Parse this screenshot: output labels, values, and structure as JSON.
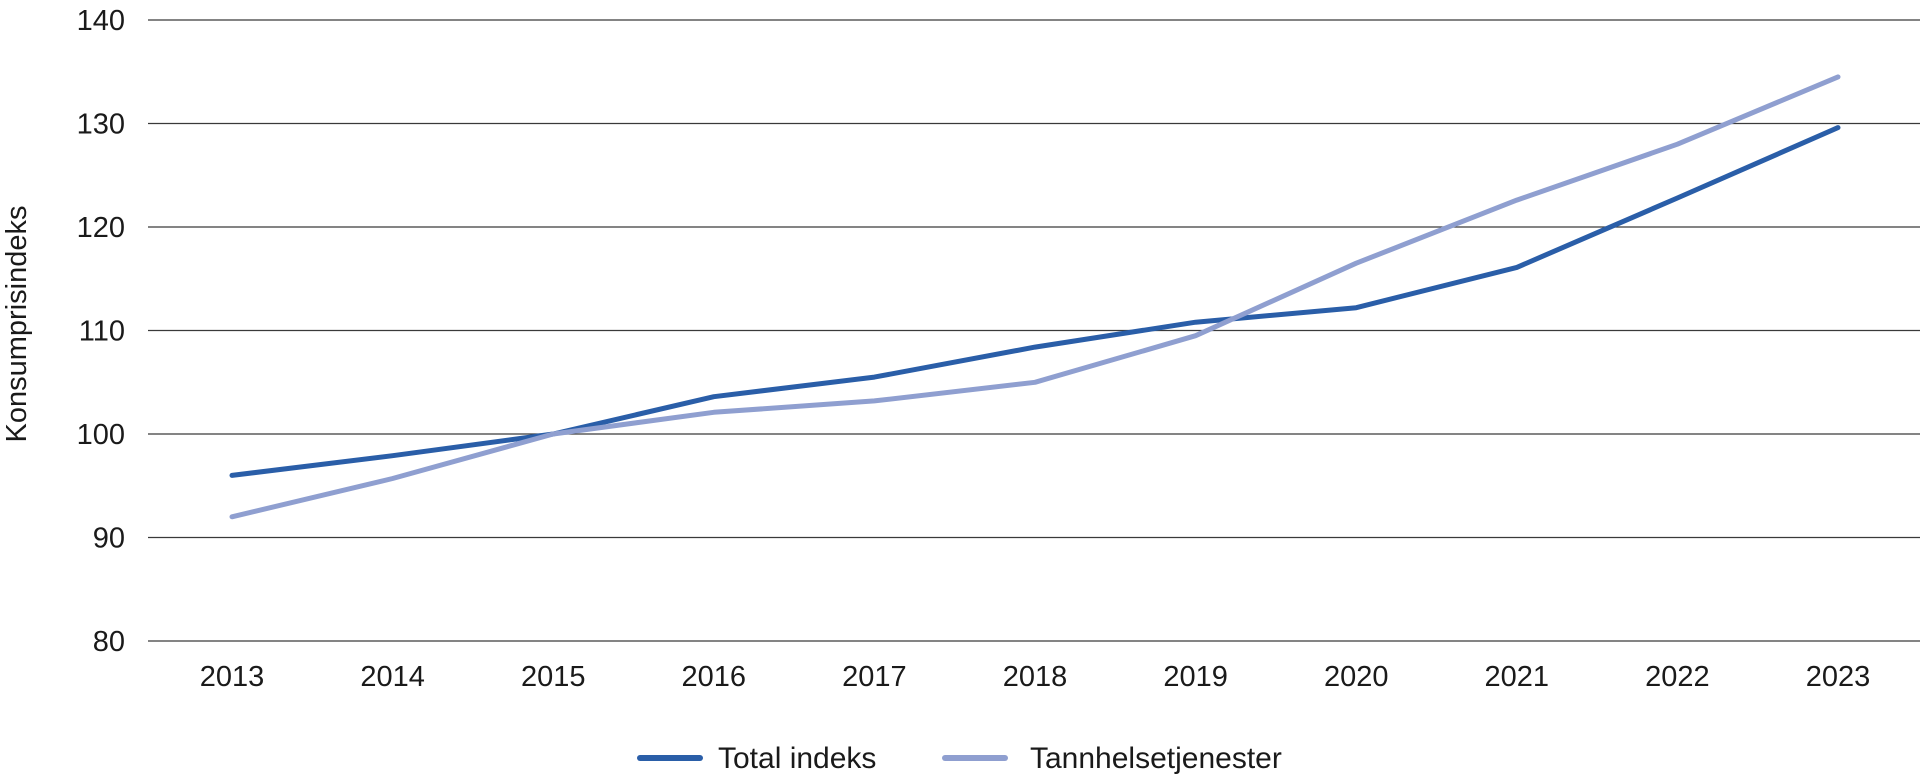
{
  "chart_data": {
    "type": "line",
    "title": "",
    "xlabel": "",
    "ylabel": "Konsumprisindeks",
    "ylim": [
      80,
      140
    ],
    "yticks": [
      80,
      90,
      100,
      110,
      120,
      130,
      140
    ],
    "categories": [
      "2013",
      "2014",
      "2015",
      "2016",
      "2017",
      "2018",
      "2019",
      "2020",
      "2021",
      "2022",
      "2023"
    ],
    "grid": true,
    "legend_position": "bottom",
    "series": [
      {
        "name": "Total indeks",
        "color": "#2a5ea8",
        "values": [
          96.0,
          97.9,
          100.0,
          103.6,
          105.5,
          108.4,
          110.8,
          112.2,
          116.1,
          122.8,
          129.6
        ]
      },
      {
        "name": "Tannhelsetjenester",
        "color": "#8f9fd0",
        "values": [
          92.0,
          95.7,
          100.0,
          102.1,
          103.2,
          105.0,
          109.5,
          116.5,
          122.6,
          128.0,
          134.5
        ]
      }
    ]
  }
}
